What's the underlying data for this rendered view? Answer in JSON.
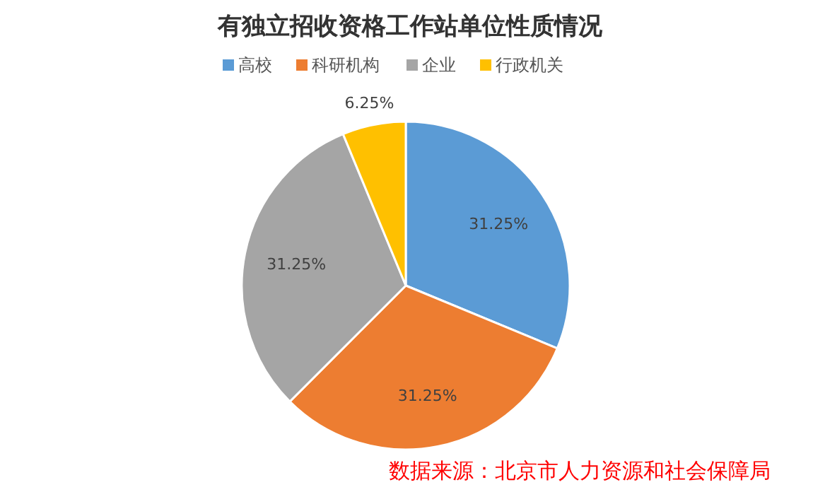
{
  "chart_data": {
    "type": "pie",
    "title": "有独立招收资格工作站单位性质情况",
    "categories": [
      "高校",
      "科研机构",
      "企业",
      "行政机关"
    ],
    "values": [
      31.25,
      31.25,
      31.25,
      6.25
    ],
    "colors": [
      "#5b9bd5",
      "#ed7d31",
      "#a5a5a5",
      "#ffc000"
    ],
    "value_labels": [
      "31.25%",
      "31.25%",
      "31.25%",
      "6.25%"
    ],
    "legend": "top",
    "annotations": [
      "数据来源：北京市人力资源和社会保障局"
    ]
  }
}
